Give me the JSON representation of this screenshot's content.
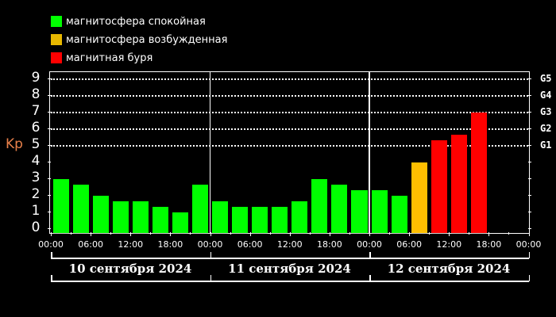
{
  "legend": {
    "items": [
      {
        "label": "магнитосфера спокойная",
        "color": "#00ff00"
      },
      {
        "label": "магнитосфера возбужденная",
        "color": "#e8b800"
      },
      {
        "label": "магнитная буря",
        "color": "#ff0000"
      }
    ]
  },
  "axis": {
    "ylabel": "Kp",
    "ylabel_color": "#e8804a",
    "yticks": [
      "0",
      "1",
      "2",
      "3",
      "4",
      "5",
      "6",
      "7",
      "8",
      "9"
    ],
    "g_scale": [
      {
        "label": "G1",
        "level": 5
      },
      {
        "label": "G2",
        "level": 6
      },
      {
        "label": "G3",
        "level": 7
      },
      {
        "label": "G4",
        "level": 8
      },
      {
        "label": "G5",
        "level": 9
      }
    ],
    "xticks": [
      "00:00",
      "06:00",
      "12:00",
      "18:00",
      "00:00",
      "06:00",
      "12:00",
      "18:00",
      "00:00",
      "06:00",
      "12:00",
      "18:00",
      "00:00"
    ],
    "days": [
      "10 сентября 2024",
      "11 сентября 2024",
      "12 сентября 2024"
    ]
  },
  "chart_data": {
    "type": "bar",
    "title": "",
    "xlabel": "",
    "ylabel": "Kp",
    "ylim": [
      0,
      9
    ],
    "grid": "dotted horizontal at 5,6,7,8,9",
    "legend_position": "top-left",
    "legend": [
      "магнитосфера спокойная",
      "магнитосфера возбужденная",
      "магнитная буря"
    ],
    "secondary_y_labels": {
      "5": "G1",
      "6": "G2",
      "7": "G3",
      "8": "G4",
      "9": "G5"
    },
    "categories": [
      "10.09 00-03",
      "10.09 03-06",
      "10.09 06-09",
      "10.09 09-12",
      "10.09 12-15",
      "10.09 15-18",
      "10.09 18-21",
      "10.09 21-24",
      "11.09 00-03",
      "11.09 03-06",
      "11.09 06-09",
      "11.09 09-12",
      "11.09 12-15",
      "11.09 15-18",
      "11.09 18-21",
      "11.09 21-24",
      "12.09 00-03",
      "12.09 03-06",
      "12.09 06-09",
      "12.09 09-12",
      "12.09 12-15",
      "12.09 15-18"
    ],
    "values": [
      3.0,
      2.67,
      2.0,
      1.67,
      1.67,
      1.33,
      1.0,
      2.67,
      1.67,
      1.33,
      1.33,
      1.33,
      1.67,
      3.0,
      2.67,
      2.33,
      2.33,
      2.0,
      4.0,
      5.33,
      5.67,
      7.0
    ],
    "status": [
      "quiet",
      "quiet",
      "quiet",
      "quiet",
      "quiet",
      "quiet",
      "quiet",
      "quiet",
      "quiet",
      "quiet",
      "quiet",
      "quiet",
      "quiet",
      "quiet",
      "quiet",
      "quiet",
      "quiet",
      "quiet",
      "excited",
      "storm",
      "storm",
      "storm"
    ],
    "days": [
      "10 сентября 2024",
      "11 сентября 2024",
      "12 сентября 2024"
    ],
    "xticks": [
      "00:00",
      "06:00",
      "12:00",
      "18:00",
      "00:00",
      "06:00",
      "12:00",
      "18:00",
      "00:00",
      "06:00",
      "12:00",
      "18:00",
      "00:00"
    ]
  }
}
